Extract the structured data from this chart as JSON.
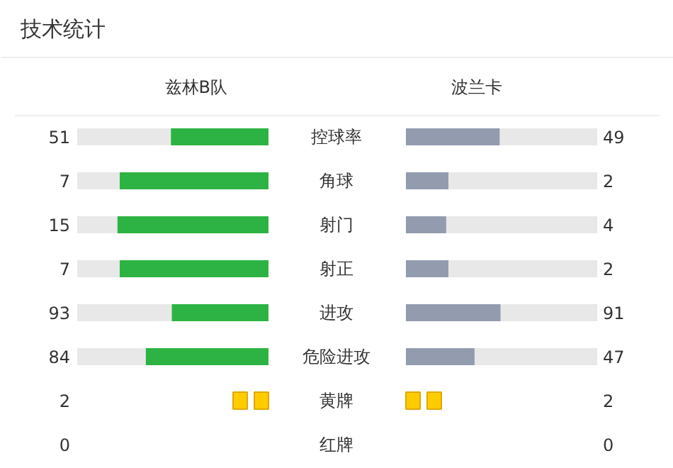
{
  "chart_data": {
    "type": "other",
    "title": "技术统计",
    "categories": [
      "控球率",
      "角球",
      "射门",
      "射正",
      "进攻",
      "危险进攻",
      "黄牌",
      "红牌"
    ],
    "data_labels": true,
    "series": [
      {
        "name": "兹林B队",
        "values": [
          51,
          7,
          15,
          7,
          93,
          84,
          2,
          0
        ],
        "colors": [
          "#2db343",
          "#2db343",
          "#2db343",
          "#2db343",
          "#2db343",
          "#2db343",
          "#ffcc00",
          "#e53935"
        ]
      },
      {
        "name": "波兰卡",
        "values": [
          49,
          2,
          4,
          2,
          91,
          47,
          2,
          0
        ],
        "colors": [
          "#939cae",
          "#939cae",
          "#939cae",
          "#939cae",
          "#939cae",
          "#939cae",
          "#ffcc00",
          "#e53935"
        ]
      }
    ]
  }
}
